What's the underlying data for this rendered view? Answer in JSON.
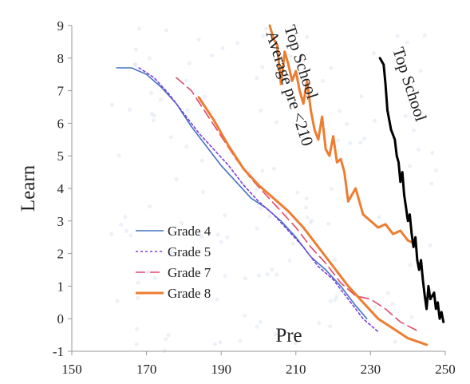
{
  "chart_data": {
    "type": "line",
    "title": "",
    "xlabel": "Pre",
    "ylabel": "Learn",
    "xlim": [
      150,
      250
    ],
    "ylim": [
      -1,
      9
    ],
    "xticks": [
      "150",
      "170",
      "190",
      "210",
      "230",
      "250"
    ],
    "yticks": [
      "-1",
      "0",
      "1",
      "2",
      "3",
      "4",
      "5",
      "6",
      "7",
      "8",
      "9"
    ],
    "grid": false,
    "legend_position": "lower-left",
    "series": [
      {
        "name": "Grade 4",
        "color": "#4472C4",
        "dash": "solid",
        "x": [
          162,
          166,
          170,
          174,
          178,
          182,
          186,
          190,
          194,
          198,
          202,
          206,
          210,
          214,
          218,
          222,
          226,
          229
        ],
        "y": [
          7.7,
          7.7,
          7.5,
          7.1,
          6.6,
          5.9,
          5.3,
          4.7,
          4.2,
          3.7,
          3.4,
          3.0,
          2.5,
          1.9,
          1.5,
          1.0,
          0.4,
          0.0
        ]
      },
      {
        "name": "Grade 5",
        "color": "#7B3FE4",
        "dash": "3,3",
        "x": [
          168,
          172,
          176,
          180,
          184,
          188,
          192,
          196,
          200,
          204,
          208,
          212,
          216,
          220,
          224,
          228,
          232
        ],
        "y": [
          7.7,
          7.4,
          6.9,
          6.3,
          5.7,
          5.2,
          4.7,
          4.1,
          3.6,
          3.2,
          2.7,
          2.2,
          1.6,
          1.2,
          0.6,
          0.0,
          -0.4
        ]
      },
      {
        "name": "Grade 7",
        "color": "#E0486B",
        "dash": "12,6",
        "x": [
          178,
          182,
          186,
          190,
          194,
          198,
          202,
          206,
          210,
          214,
          218,
          222,
          226,
          230,
          234,
          238,
          243
        ],
        "y": [
          7.4,
          7.0,
          6.3,
          5.6,
          4.9,
          4.3,
          3.8,
          3.3,
          2.8,
          2.2,
          1.7,
          1.1,
          0.7,
          0.6,
          0.3,
          -0.1,
          -0.4
        ]
      },
      {
        "name": "Grade 8",
        "color": "#ED7D31",
        "dash": "solid",
        "x": [
          184,
          188,
          192,
          196,
          200,
          204,
          208,
          212,
          216,
          220,
          224,
          228,
          232,
          236,
          240,
          245
        ],
        "y": [
          6.8,
          6.1,
          5.3,
          4.6,
          4.1,
          3.7,
          3.3,
          2.8,
          2.2,
          1.6,
          1.0,
          0.5,
          0.0,
          -0.3,
          -0.6,
          -0.8
        ]
      },
      {
        "name": "",
        "color": "#ED7D31",
        "dash": "solid",
        "x": [
          203,
          204,
          205,
          206,
          207,
          208,
          209,
          210,
          211,
          212,
          213,
          214,
          215,
          216,
          217,
          218,
          219,
          220,
          221,
          222,
          223,
          224,
          226,
          228,
          230,
          232,
          234,
          236,
          238,
          240,
          242
        ],
        "y": [
          9.0,
          8.6,
          8.4,
          7.2,
          8.2,
          7.8,
          7.3,
          7.6,
          7.0,
          6.6,
          7.3,
          6.4,
          5.8,
          5.5,
          6.2,
          5.2,
          5.0,
          5.6,
          4.8,
          4.9,
          4.5,
          3.6,
          4.0,
          3.2,
          3.0,
          2.8,
          2.9,
          2.6,
          2.7,
          2.4,
          2.3
        ]
      },
      {
        "name": "",
        "color": "#000000",
        "dash": "solid",
        "x": [
          232.5,
          233.5,
          234,
          234.5,
          235.5,
          236.5,
          237,
          237.5,
          238,
          238.5,
          239,
          239.5,
          240,
          240.5,
          241,
          241.5,
          242,
          242.5,
          243,
          243.5,
          244,
          244.5,
          245,
          245.5,
          246,
          247,
          247.5,
          248,
          248.5,
          249,
          249.5
        ],
        "y": [
          8.0,
          7.8,
          7.2,
          6.4,
          5.8,
          5.5,
          5.0,
          4.8,
          4.2,
          4.5,
          3.8,
          3.4,
          3.0,
          3.2,
          2.6,
          2.2,
          2.5,
          1.8,
          1.5,
          1.8,
          1.2,
          0.7,
          0.3,
          1.0,
          0.6,
          0.8,
          0.3,
          0.5,
          0.0,
          0.2,
          -0.1
        ]
      }
    ],
    "annotations": [
      {
        "lines": [
          "Top School",
          "Average pre <210"
        ],
        "color": "#222222"
      },
      {
        "lines": [
          "Top School"
        ],
        "color": "#222222"
      }
    ]
  }
}
